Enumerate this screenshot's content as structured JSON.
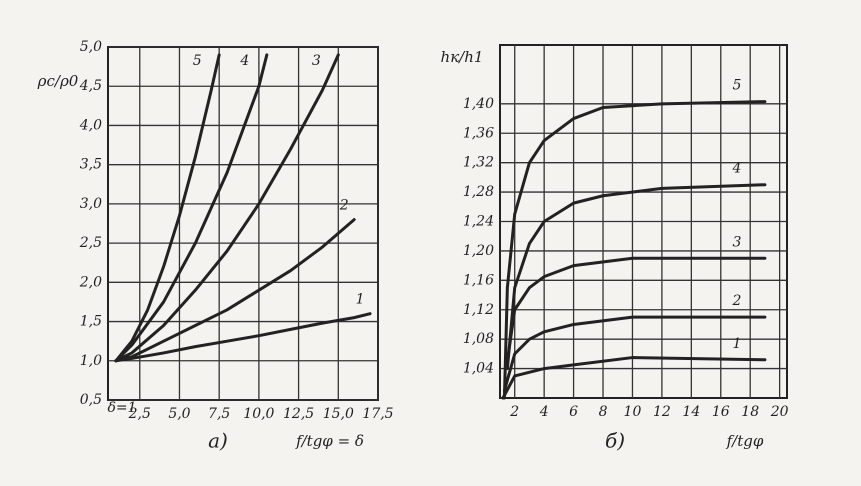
{
  "chart_data": [
    {
      "type": "line",
      "caption": "а)",
      "x_label": "f/tgφ = δ",
      "y_label": "ρc/ρ0",
      "annotation": "δ=1",
      "xlim": [
        0.5,
        17.5
      ],
      "ylim": [
        0.5,
        5.0
      ],
      "grid": true,
      "color": "#222",
      "xticks": [
        {
          "value": 2.5,
          "label": "2,5"
        },
        {
          "value": 5.0,
          "label": "5,0"
        },
        {
          "value": 7.5,
          "label": "7,5"
        },
        {
          "value": 10.0,
          "label": "10,0"
        },
        {
          "value": 12.5,
          "label": "12,5"
        },
        {
          "value": 15.0,
          "label": "15,0"
        },
        {
          "value": 17.5,
          "label": "17,5"
        }
      ],
      "yticks": [
        {
          "value": 0.5,
          "label": "0,5"
        },
        {
          "value": 1.0,
          "label": "1,0"
        },
        {
          "value": 1.5,
          "label": "1,5"
        },
        {
          "value": 2.0,
          "label": "2,0"
        },
        {
          "value": 2.5,
          "label": "2,5"
        },
        {
          "value": 3.0,
          "label": "3,0"
        },
        {
          "value": 3.5,
          "label": "3,5"
        },
        {
          "value": 4.0,
          "label": "4,0"
        },
        {
          "value": 4.5,
          "label": "4,5"
        },
        {
          "value": 5.0,
          "label": "5,0"
        }
      ],
      "series": [
        {
          "name": "1",
          "x": [
            1,
            2,
            4,
            6,
            8,
            10,
            12,
            14,
            16,
            17
          ],
          "values": [
            1.0,
            1.03,
            1.1,
            1.18,
            1.25,
            1.32,
            1.4,
            1.48,
            1.55,
            1.6
          ]
        },
        {
          "name": "2",
          "x": [
            1,
            2,
            4,
            6,
            8,
            10,
            12,
            14,
            16
          ],
          "values": [
            1.0,
            1.05,
            1.25,
            1.45,
            1.65,
            1.9,
            2.15,
            2.45,
            2.8
          ]
        },
        {
          "name": "3",
          "x": [
            1,
            2,
            4,
            6,
            8,
            10,
            12,
            14,
            15
          ],
          "values": [
            1.0,
            1.1,
            1.45,
            1.9,
            2.4,
            3.0,
            3.7,
            4.45,
            4.9
          ]
        },
        {
          "name": "4",
          "x": [
            1,
            2,
            4,
            6,
            8,
            10,
            10.5
          ],
          "values": [
            1.0,
            1.2,
            1.75,
            2.5,
            3.4,
            4.5,
            4.9
          ]
        },
        {
          "name": "5",
          "x": [
            1,
            2,
            3,
            4,
            5,
            6,
            7,
            7.5
          ],
          "values": [
            1.0,
            1.25,
            1.65,
            2.2,
            2.85,
            3.6,
            4.45,
            4.9
          ]
        }
      ]
    },
    {
      "type": "line",
      "caption": "б)",
      "x_label": "f/tgφ",
      "y_label": "hк/h1",
      "xlim": [
        1,
        20.5
      ],
      "ylim": [
        1.0,
        1.48
      ],
      "grid": true,
      "color": "#222",
      "xticks": [
        2,
        4,
        6,
        8,
        10,
        12,
        14,
        16,
        18,
        20
      ],
      "yticks": [
        {
          "value": 1.04,
          "label": "1,04"
        },
        {
          "value": 1.08,
          "label": "1,08"
        },
        {
          "value": 1.12,
          "label": "1,12"
        },
        {
          "value": 1.16,
          "label": "1,16"
        },
        {
          "value": 1.2,
          "label": "1,20"
        },
        {
          "value": 1.24,
          "label": "1,24"
        },
        {
          "value": 1.28,
          "label": "1,28"
        },
        {
          "value": 1.32,
          "label": "1,32"
        },
        {
          "value": 1.36,
          "label": "1,36"
        },
        {
          "value": 1.4,
          "label": "1,40"
        }
      ],
      "series": [
        {
          "name": "1",
          "x": [
            1.2,
            2,
            4,
            6,
            10,
            19
          ],
          "values": [
            1.0,
            1.03,
            1.04,
            1.045,
            1.055,
            1.052
          ]
        },
        {
          "name": "2",
          "x": [
            1.3,
            2,
            3,
            4,
            6,
            10,
            19
          ],
          "values": [
            1.01,
            1.06,
            1.08,
            1.09,
            1.1,
            1.11,
            1.11
          ]
        },
        {
          "name": "3",
          "x": [
            1.5,
            2,
            3,
            4,
            6,
            10,
            19
          ],
          "values": [
            1.05,
            1.12,
            1.15,
            1.165,
            1.18,
            1.19,
            1.19
          ]
        },
        {
          "name": "4",
          "x": [
            1.5,
            2,
            3,
            4,
            6,
            8,
            12,
            19
          ],
          "values": [
            1.04,
            1.15,
            1.21,
            1.24,
            1.265,
            1.275,
            1.285,
            1.29
          ]
        },
        {
          "name": "5",
          "x": [
            1.3,
            1.5,
            2,
            3,
            4,
            6,
            8,
            12,
            19
          ],
          "values": [
            1.0,
            1.15,
            1.25,
            1.32,
            1.35,
            1.38,
            1.395,
            1.4,
            1.403
          ]
        }
      ]
    }
  ]
}
